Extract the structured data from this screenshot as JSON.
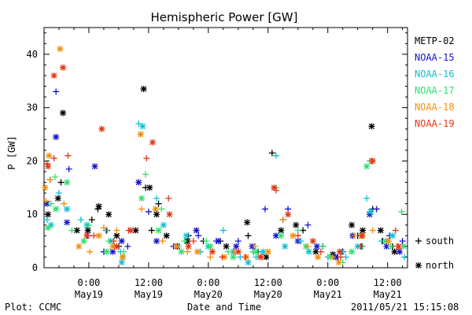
{
  "chart_data": {
    "type": "scatter",
    "title": "Hemispheric Power [GW]",
    "ylabel": "P [GW]",
    "xlabel": "Date and Time",
    "ylim": [
      0,
      45
    ],
    "xlim": [
      "2011-05-18 15:00",
      "2011-05-21 16:00"
    ],
    "yticks": [
      "0",
      "10",
      "20",
      "30",
      "40"
    ],
    "xticks": [
      {
        "x": "2011-05-19 00:00",
        "line1": "0:00",
        "line2": "May19"
      },
      {
        "x": "2011-05-19 12:00",
        "line1": "12:00",
        "line2": "May19"
      },
      {
        "x": "2011-05-20 00:00",
        "line1": "0:00",
        "line2": "May20"
      },
      {
        "x": "2011-05-20 12:00",
        "line1": "12:00",
        "line2": "May20"
      },
      {
        "x": "2011-05-21 00:00",
        "line1": "0:00",
        "line2": "May21"
      },
      {
        "x": "2011-05-21 12:00",
        "line1": "12:00",
        "line2": "May21"
      }
    ],
    "legend_position": "right",
    "marker_legend": [
      {
        "symbol": "+",
        "label": "south"
      },
      {
        "symbol": "*",
        "label": "north"
      }
    ],
    "series": [
      {
        "name": "METP-02",
        "color": "#000000",
        "south": [
          [
            "05-18 16:12",
            16.5
          ],
          [
            "05-18 18:24",
            16
          ],
          [
            "05-19 00:36",
            9
          ],
          [
            "05-19 01:48",
            11
          ],
          [
            "05-19 03:36",
            7
          ],
          [
            "05-19 06:00",
            4
          ],
          [
            "05-19 11:24",
            15
          ],
          [
            "05-19 12:36",
            7
          ],
          [
            "05-19 14:00",
            12
          ],
          [
            "05-19 20:00",
            6
          ],
          [
            "05-19 23:00",
            5
          ],
          [
            "05-20 02:24",
            5
          ],
          [
            "05-20 05:00",
            3
          ],
          [
            "05-20 08:00",
            6
          ],
          [
            "05-20 10:00",
            3
          ],
          [
            "05-20 12:48",
            21.5
          ],
          [
            "05-20 15:00",
            9
          ],
          [
            "05-20 19:00",
            7
          ],
          [
            "05-20 23:00",
            4
          ],
          [
            "05-21 02:00",
            2
          ],
          [
            "05-21 06:00",
            6
          ],
          [
            "05-21 09:00",
            11
          ],
          [
            "05-21 11:00",
            5
          ],
          [
            "05-21 13:00",
            4
          ]
        ],
        "north": [
          [
            "05-18 15:48",
            10
          ],
          [
            "05-18 17:48",
            13
          ],
          [
            "05-18 18:48",
            29
          ],
          [
            "05-18 21:36",
            7
          ],
          [
            "05-18 23:48",
            7
          ],
          [
            "05-19 02:00",
            11.5
          ],
          [
            "05-19 04:00",
            10
          ],
          [
            "05-19 05:36",
            6
          ],
          [
            "05-19 09:24",
            7
          ],
          [
            "05-19 11:00",
            33.5
          ],
          [
            "05-19 12:12",
            15
          ],
          [
            "05-19 13:36",
            10
          ],
          [
            "05-19 15:36",
            6
          ],
          [
            "05-19 19:48",
            5
          ],
          [
            "05-20 03:36",
            4
          ],
          [
            "05-20 07:48",
            8.5
          ],
          [
            "05-20 11:36",
            2
          ],
          [
            "05-20 14:36",
            7
          ],
          [
            "05-20 17:36",
            8
          ],
          [
            "05-20 21:36",
            3
          ],
          [
            "05-21 01:00",
            2.5
          ],
          [
            "05-21 04:48",
            8
          ],
          [
            "05-21 07:00",
            7
          ],
          [
            "05-21 08:48",
            26.5
          ],
          [
            "05-21 10:36",
            7
          ],
          [
            "05-21 13:24",
            3
          ]
        ]
      },
      {
        "name": "NOAA-15",
        "color": "#1515cc",
        "south": [
          [
            "05-18 17:24",
            33
          ],
          [
            "05-18 20:00",
            18.5
          ],
          [
            "05-18 23:48",
            6
          ],
          [
            "05-19 03:00",
            3
          ],
          [
            "05-19 07:48",
            4
          ],
          [
            "05-19 12:00",
            10.5
          ],
          [
            "05-19 17:00",
            4
          ],
          [
            "05-19 22:00",
            6
          ],
          [
            "05-20 01:36",
            5
          ],
          [
            "05-20 06:00",
            5
          ],
          [
            "05-20 09:00",
            3
          ],
          [
            "05-20 11:24",
            11
          ],
          [
            "05-20 16:00",
            11
          ],
          [
            "05-20 20:00",
            8
          ],
          [
            "05-20 23:00",
            4
          ],
          [
            "05-21 03:00",
            3
          ],
          [
            "05-21 06:48",
            4
          ],
          [
            "05-21 09:48",
            11
          ],
          [
            "05-21 12:24",
            6
          ],
          [
            "05-21 15:00",
            5
          ]
        ],
        "north": [
          [
            "05-18 15:36",
            12
          ],
          [
            "05-18 17:24",
            24.5
          ],
          [
            "05-18 19:36",
            8.5
          ],
          [
            "05-19 01:12",
            19
          ],
          [
            "05-19 04:48",
            3
          ],
          [
            "05-19 06:36",
            5
          ],
          [
            "05-19 10:00",
            16
          ],
          [
            "05-19 13:36",
            5
          ],
          [
            "05-19 17:48",
            4
          ],
          [
            "05-19 21:36",
            7
          ],
          [
            "05-20 02:00",
            5
          ],
          [
            "05-20 05:36",
            4
          ],
          [
            "05-20 08:48",
            4
          ],
          [
            "05-20 13:36",
            6
          ],
          [
            "05-20 18:00",
            5
          ],
          [
            "05-20 21:48",
            4
          ],
          [
            "05-21 01:36",
            2
          ],
          [
            "05-21 05:00",
            6
          ],
          [
            "05-21 08:24",
            10
          ],
          [
            "05-21 11:48",
            4
          ],
          [
            "05-21 14:24",
            3
          ]
        ]
      },
      {
        "name": "NOAA-16",
        "color": "#10c0d8",
        "south": [
          [
            "05-18 15:36",
            9
          ],
          [
            "05-18 18:00",
            14
          ],
          [
            "05-18 22:24",
            9
          ],
          [
            "05-19 03:24",
            7
          ],
          [
            "05-19 06:24",
            3
          ],
          [
            "05-19 10:00",
            27
          ],
          [
            "05-19 13:36",
            13
          ],
          [
            "05-19 18:00",
            4
          ],
          [
            "05-19 22:24",
            3
          ],
          [
            "05-20 03:00",
            7
          ],
          [
            "05-20 06:24",
            2
          ],
          [
            "05-20 09:36",
            2
          ],
          [
            "05-20 13:36",
            21
          ],
          [
            "05-20 18:36",
            5
          ],
          [
            "05-21 00:00",
            2
          ],
          [
            "05-21 03:36",
            2
          ],
          [
            "05-21 07:48",
            13
          ],
          [
            "05-21 10:48",
            5
          ],
          [
            "05-21 15:24",
            2
          ]
        ],
        "north": [
          [
            "05-18 16:24",
            8
          ],
          [
            "05-18 19:36",
            11
          ],
          [
            "05-18 23:36",
            8
          ],
          [
            "05-19 04:24",
            5
          ],
          [
            "05-19 06:36",
            1
          ],
          [
            "05-19 10:48",
            26.5
          ],
          [
            "05-19 15:00",
            8
          ],
          [
            "05-19 19:36",
            6
          ],
          [
            "05-20 00:00",
            4
          ],
          [
            "05-20 05:00",
            3
          ],
          [
            "05-20 08:00",
            1
          ],
          [
            "05-20 11:00",
            3
          ],
          [
            "05-20 15:24",
            4
          ],
          [
            "05-20 20:12",
            3
          ],
          [
            "05-21 02:48",
            3
          ],
          [
            "05-21 06:00",
            4
          ],
          [
            "05-21 08:36",
            10.5
          ],
          [
            "05-21 13:00",
            6
          ]
        ]
      },
      {
        "name": "NOAA-17",
        "color": "#30e070",
        "south": [
          [
            "05-18 16:24",
            12
          ],
          [
            "05-18 17:12",
            17
          ],
          [
            "05-18 20:36",
            7
          ],
          [
            "05-19 00:00",
            8
          ],
          [
            "05-19 04:00",
            5
          ],
          [
            "05-19 07:00",
            3
          ],
          [
            "05-19 11:24",
            17.5
          ],
          [
            "05-19 14:36",
            11
          ],
          [
            "05-19 19:12",
            5
          ],
          [
            "05-19 23:36",
            5
          ],
          [
            "05-20 04:00",
            3
          ],
          [
            "05-20 09:00",
            3
          ],
          [
            "05-20 13:36",
            15
          ],
          [
            "05-20 18:00",
            7
          ],
          [
            "05-20 23:00",
            4
          ],
          [
            "05-21 03:00",
            1
          ],
          [
            "05-21 07:00",
            4
          ],
          [
            "05-21 08:24",
            20
          ],
          [
            "05-21 12:36",
            4
          ],
          [
            "05-21 14:48",
            10.5
          ]
        ],
        "north": [
          [
            "05-18 15:48",
            7.5
          ],
          [
            "05-18 17:24",
            11
          ],
          [
            "05-18 19:36",
            16
          ],
          [
            "05-18 23:00",
            5
          ],
          [
            "05-19 03:36",
            3
          ],
          [
            "05-19 06:48",
            2
          ],
          [
            "05-19 10:36",
            13
          ],
          [
            "05-19 14:00",
            7
          ],
          [
            "05-19 18:36",
            3
          ],
          [
            "05-20 00:24",
            4
          ],
          [
            "05-20 05:00",
            2
          ],
          [
            "05-20 09:36",
            3
          ],
          [
            "05-20 14:36",
            6
          ],
          [
            "05-20 19:36",
            4
          ],
          [
            "05-21 00:36",
            2
          ],
          [
            "05-21 04:48",
            3
          ],
          [
            "05-21 07:48",
            19
          ],
          [
            "05-21 11:36",
            5
          ],
          [
            "05-21 15:12",
            4
          ]
        ]
      },
      {
        "name": "NOAA-18",
        "color": "#f09010",
        "south": [
          [
            "05-18 15:24",
            12.5
          ],
          [
            "05-18 16:12",
            16.5
          ],
          [
            "05-18 19:00",
            12
          ],
          [
            "05-19 00:12",
            3
          ],
          [
            "05-19 03:00",
            7.5
          ],
          [
            "05-19 05:36",
            7
          ],
          [
            "05-19 10:36",
            11
          ],
          [
            "05-19 14:48",
            5
          ],
          [
            "05-19 19:48",
            3
          ],
          [
            "05-20 00:24",
            2
          ],
          [
            "05-20 05:12",
            3
          ],
          [
            "05-20 09:24",
            4
          ],
          [
            "05-20 15:00",
            9
          ],
          [
            "05-20 20:00",
            4
          ],
          [
            "05-21 01:00",
            2
          ],
          [
            "05-21 05:24",
            6
          ],
          [
            "05-21 09:00",
            7
          ],
          [
            "05-21 14:00",
            4
          ]
        ],
        "north": [
          [
            "05-18 15:12",
            15
          ],
          [
            "05-18 16:00",
            21
          ],
          [
            "05-18 18:12",
            41
          ],
          [
            "05-18 22:00",
            4
          ],
          [
            "05-19 02:00",
            6
          ],
          [
            "05-19 04:48",
            4
          ],
          [
            "05-19 06:48",
            2
          ],
          [
            "05-19 10:24",
            25
          ],
          [
            "05-19 13:24",
            11
          ],
          [
            "05-19 17:36",
            4
          ],
          [
            "05-19 21:48",
            3
          ],
          [
            "05-20 03:12",
            2
          ],
          [
            "05-20 07:36",
            2
          ],
          [
            "05-20 12:00",
            3
          ],
          [
            "05-20 17:00",
            6
          ],
          [
            "05-20 22:00",
            2
          ],
          [
            "05-21 02:12",
            1
          ],
          [
            "05-21 07:00",
            6
          ],
          [
            "05-21 12:12",
            5
          ]
        ]
      },
      {
        "name": "NOAA-19",
        "color": "#e03818",
        "south": [
          [
            "05-18 15:36",
            19.5
          ],
          [
            "05-18 17:00",
            20.5
          ],
          [
            "05-18 19:48",
            21
          ],
          [
            "05-19 01:00",
            6
          ],
          [
            "05-19 05:00",
            5
          ],
          [
            "05-19 08:00",
            7
          ],
          [
            "05-19 11:36",
            20.5
          ],
          [
            "05-19 16:00",
            13
          ],
          [
            "05-19 21:00",
            5
          ],
          [
            "05-20 02:48",
            2
          ],
          [
            "05-20 07:24",
            2
          ],
          [
            "05-20 10:48",
            2
          ],
          [
            "05-20 13:36",
            14.5
          ],
          [
            "05-20 18:00",
            6
          ],
          [
            "05-20 22:36",
            3
          ],
          [
            "05-21 02:36",
            2
          ],
          [
            "05-21 06:36",
            4
          ],
          [
            "05-21 08:48",
            20
          ],
          [
            "05-21 13:36",
            7
          ]
        ],
        "north": [
          [
            "05-18 15:48",
            19
          ],
          [
            "05-18 17:00",
            36
          ],
          [
            "05-18 18:48",
            37.5
          ],
          [
            "05-18 23:36",
            6
          ],
          [
            "05-19 02:36",
            26
          ],
          [
            "05-19 05:36",
            4
          ],
          [
            "05-19 08:24",
            7
          ],
          [
            "05-19 12:48",
            23.5
          ],
          [
            "05-19 16:12",
            10
          ],
          [
            "05-19 20:00",
            4
          ],
          [
            "05-20 00:48",
            3
          ],
          [
            "05-20 06:00",
            3
          ],
          [
            "05-20 10:24",
            2
          ],
          [
            "05-20 13:12",
            15
          ],
          [
            "05-20 16:00",
            10
          ],
          [
            "05-20 21:00",
            5
          ],
          [
            "05-21 02:24",
            3
          ],
          [
            "05-21 06:48",
            6
          ],
          [
            "05-21 09:00",
            20
          ],
          [
            "05-21 14:12",
            4
          ]
        ]
      }
    ]
  },
  "footer": {
    "plot_credit": "Plot: CCMC",
    "timestamp": "2011/05/21  15:15:08"
  }
}
